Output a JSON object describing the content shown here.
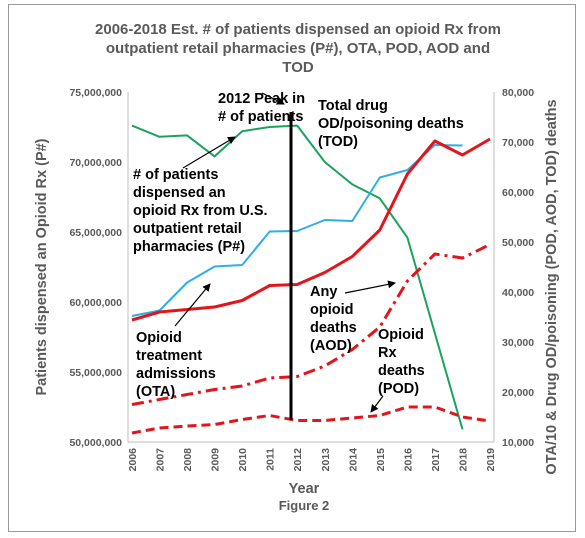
{
  "chart_data": {
    "type": "line",
    "title_lines": [
      "2006-2018 Est. # of patients dispensed an opioid Rx from",
      "outpatient retail pharmacies (P#), OTA, POD, AOD and",
      "TOD"
    ],
    "xlabel": "Year",
    "ylabel_left": "Patients dispensed an Opioid Rx  (P#)",
    "ylabel_right": "OTA/10 & Drug OD/poisoning (POD, AOD, TOD) deaths",
    "caption": "Figure 2",
    "x": [
      "2006",
      "2007",
      "2008",
      "2009",
      "2010",
      "2011",
      "2012",
      "2013",
      "2014",
      "2015",
      "2016",
      "2017",
      "2018",
      "2019"
    ],
    "yticks_left": [
      "50,000,000",
      "55,000,000",
      "60,000,000",
      "65,000,000",
      "70,000,000",
      "75,000,000"
    ],
    "ylim_left": [
      50000000,
      75000000
    ],
    "yticks_right": [
      "10,000",
      "20,000",
      "30,000",
      "40,000",
      "50,000",
      "60,000",
      "70,000",
      "80,000"
    ],
    "ylim_right": [
      10000,
      80000
    ],
    "grid": false,
    "series": [
      {
        "name": "# of patients dispensed an opioid Rx from U.S. outpatient retail pharmacies (P#)",
        "axis": "left",
        "color": "#1aa260",
        "style": "solid",
        "values": [
          72600000,
          71800000,
          71900000,
          70400000,
          72200000,
          72500000,
          72600000,
          70000000,
          68400000,
          67400000,
          64600000,
          null,
          50900000,
          null
        ]
      },
      {
        "name": "Opioid treatment admissions (OTA)",
        "axis": "right",
        "color": "#2eaee8",
        "style": "solid",
        "values": [
          35200,
          36300,
          41900,
          45100,
          45400,
          52100,
          52200,
          54400,
          54200,
          62900,
          64400,
          69400,
          69300,
          null
        ]
      },
      {
        "name": "Total drug OD/poisoning deaths (TOD)",
        "axis": "right",
        "color": "#e3151c",
        "style": "solid",
        "values": [
          34400,
          36000,
          36500,
          37000,
          38300,
          41300,
          41500,
          43900,
          47100,
          52400,
          63600,
          70200,
          67400,
          70600
        ]
      },
      {
        "name": "Any opioid deaths (AOD)",
        "axis": "right",
        "color": "#e3151c",
        "style": "dashdot",
        "values": [
          17500,
          18500,
          19500,
          20500,
          21200,
          22800,
          23100,
          25200,
          28500,
          33000,
          42200,
          47600,
          46800,
          49500
        ]
      },
      {
        "name": "Opioid Rx deaths (POD)",
        "axis": "right",
        "color": "#e3151c",
        "style": "dashed",
        "values": [
          11800,
          12800,
          13200,
          13500,
          14500,
          15300,
          14300,
          14300,
          14800,
          15300,
          17000,
          17000,
          15000,
          14200
        ]
      }
    ],
    "marker": {
      "year": "2012",
      "label": "2012 Peak in # of patients"
    }
  },
  "annotations": {
    "peak_line1": "2012 Peak in",
    "peak_line2": "# of patients",
    "tod_line1": "Total drug",
    "tod_line2": "OD/poisoning deaths",
    "tod_line3": "(TOD)",
    "p_line1": "# of patients",
    "p_line2": "dispensed an",
    "p_line3": "opioid Rx from U.S.",
    "p_line4": "outpatient retail",
    "p_line5": "pharmacies (P#)",
    "ota_line1": "Opioid",
    "ota_line2": "treatment",
    "ota_line3": "admissions",
    "ota_line4": "(OTA)",
    "aod_line1": "Any",
    "aod_line2": "opioid",
    "aod_line3": "deaths",
    "aod_line4": "(AOD)",
    "pod_line1": "Opioid",
    "pod_line2": "Rx",
    "pod_line3": "deaths",
    "pod_line4": "(POD)"
  }
}
